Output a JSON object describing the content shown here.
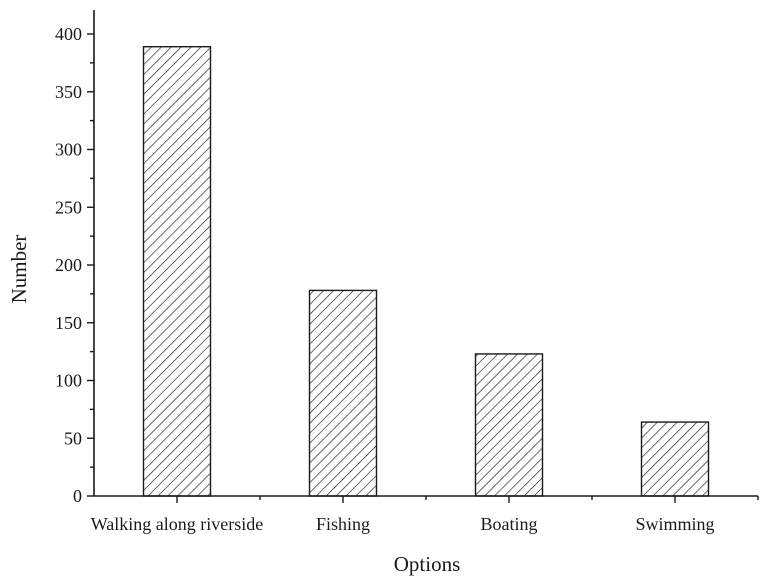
{
  "chart_data": {
    "type": "bar",
    "title": "",
    "xlabel": "Options",
    "ylabel": "Number",
    "categories": [
      "Walking along riverside",
      "Fishing",
      "Boating",
      "Swimming"
    ],
    "values": [
      389,
      178,
      123,
      64
    ],
    "ylim": [
      0,
      400
    ],
    "yticks": [
      0,
      50,
      100,
      150,
      200,
      250,
      300,
      350,
      400
    ],
    "ytick_labels": [
      "0",
      "50",
      "100",
      "150",
      "200",
      "250",
      "300",
      "350",
      "400"
    ],
    "grid": false,
    "legend": "none",
    "bar_fill": "diagonal-hatch",
    "colors": {
      "stroke": "#1a1a1a",
      "background": "#ffffff"
    }
  }
}
